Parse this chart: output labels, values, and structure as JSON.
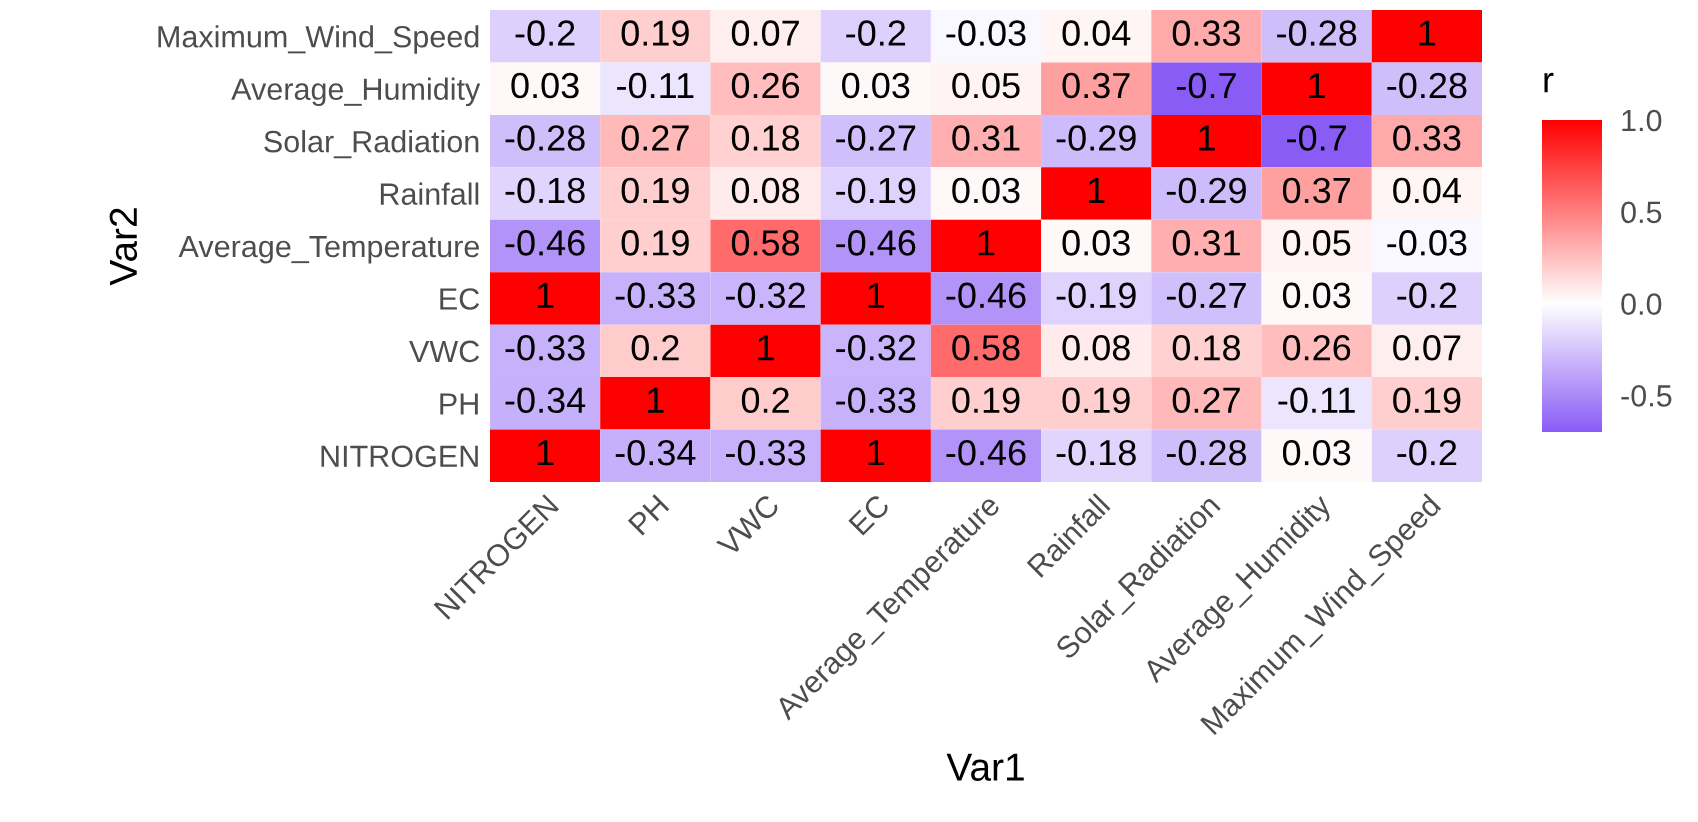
{
  "chart_data": {
    "type": "heatmap",
    "xlabel": "Var1",
    "ylabel": "Var2",
    "clabel": "r",
    "categories": [
      "NITROGEN",
      "PH",
      "VWC",
      "EC",
      "Average_Temperature",
      "Rainfall",
      "Solar_Radiation",
      "Average_Humidity",
      "Maximum_Wind_Speed"
    ],
    "y_categories": [
      "Maximum_Wind_Speed",
      "Average_Humidity",
      "Solar_Radiation",
      "Rainfall",
      "Average_Temperature",
      "EC",
      "VWC",
      "PH",
      "NITROGEN"
    ],
    "cells": [
      [
        -0.2,
        0.19,
        0.07,
        -0.2,
        -0.03,
        0.04,
        0.33,
        -0.28,
        1
      ],
      [
        0.03,
        -0.11,
        0.26,
        0.03,
        0.05,
        0.37,
        -0.7,
        1,
        -0.28
      ],
      [
        -0.28,
        0.27,
        0.18,
        -0.27,
        0.31,
        -0.29,
        1,
        -0.7,
        0.33
      ],
      [
        -0.18,
        0.19,
        0.08,
        -0.19,
        0.03,
        1,
        -0.29,
        0.37,
        0.04
      ],
      [
        -0.46,
        0.19,
        0.58,
        -0.46,
        1,
        0.03,
        0.31,
        0.05,
        -0.03
      ],
      [
        1,
        -0.33,
        -0.32,
        1,
        -0.46,
        -0.19,
        -0.27,
        0.03,
        -0.2
      ],
      [
        -0.33,
        0.2,
        1,
        -0.32,
        0.58,
        0.08,
        0.18,
        0.26,
        0.07
      ],
      [
        -0.34,
        1,
        0.2,
        -0.33,
        0.19,
        0.19,
        0.27,
        -0.11,
        0.19
      ],
      [
        1,
        -0.34,
        -0.33,
        1,
        -0.46,
        -0.18,
        -0.28,
        0.03,
        -0.2
      ]
    ],
    "data_labels": true,
    "clim": [
      -0.7,
      1.0
    ],
    "cticks": [
      {
        "value": -0.5,
        "label": "-0.5"
      },
      {
        "value": 0.0,
        "label": "0.0"
      },
      {
        "value": 0.5,
        "label": "0.5"
      },
      {
        "value": 1.0,
        "label": "1.0"
      }
    ]
  }
}
